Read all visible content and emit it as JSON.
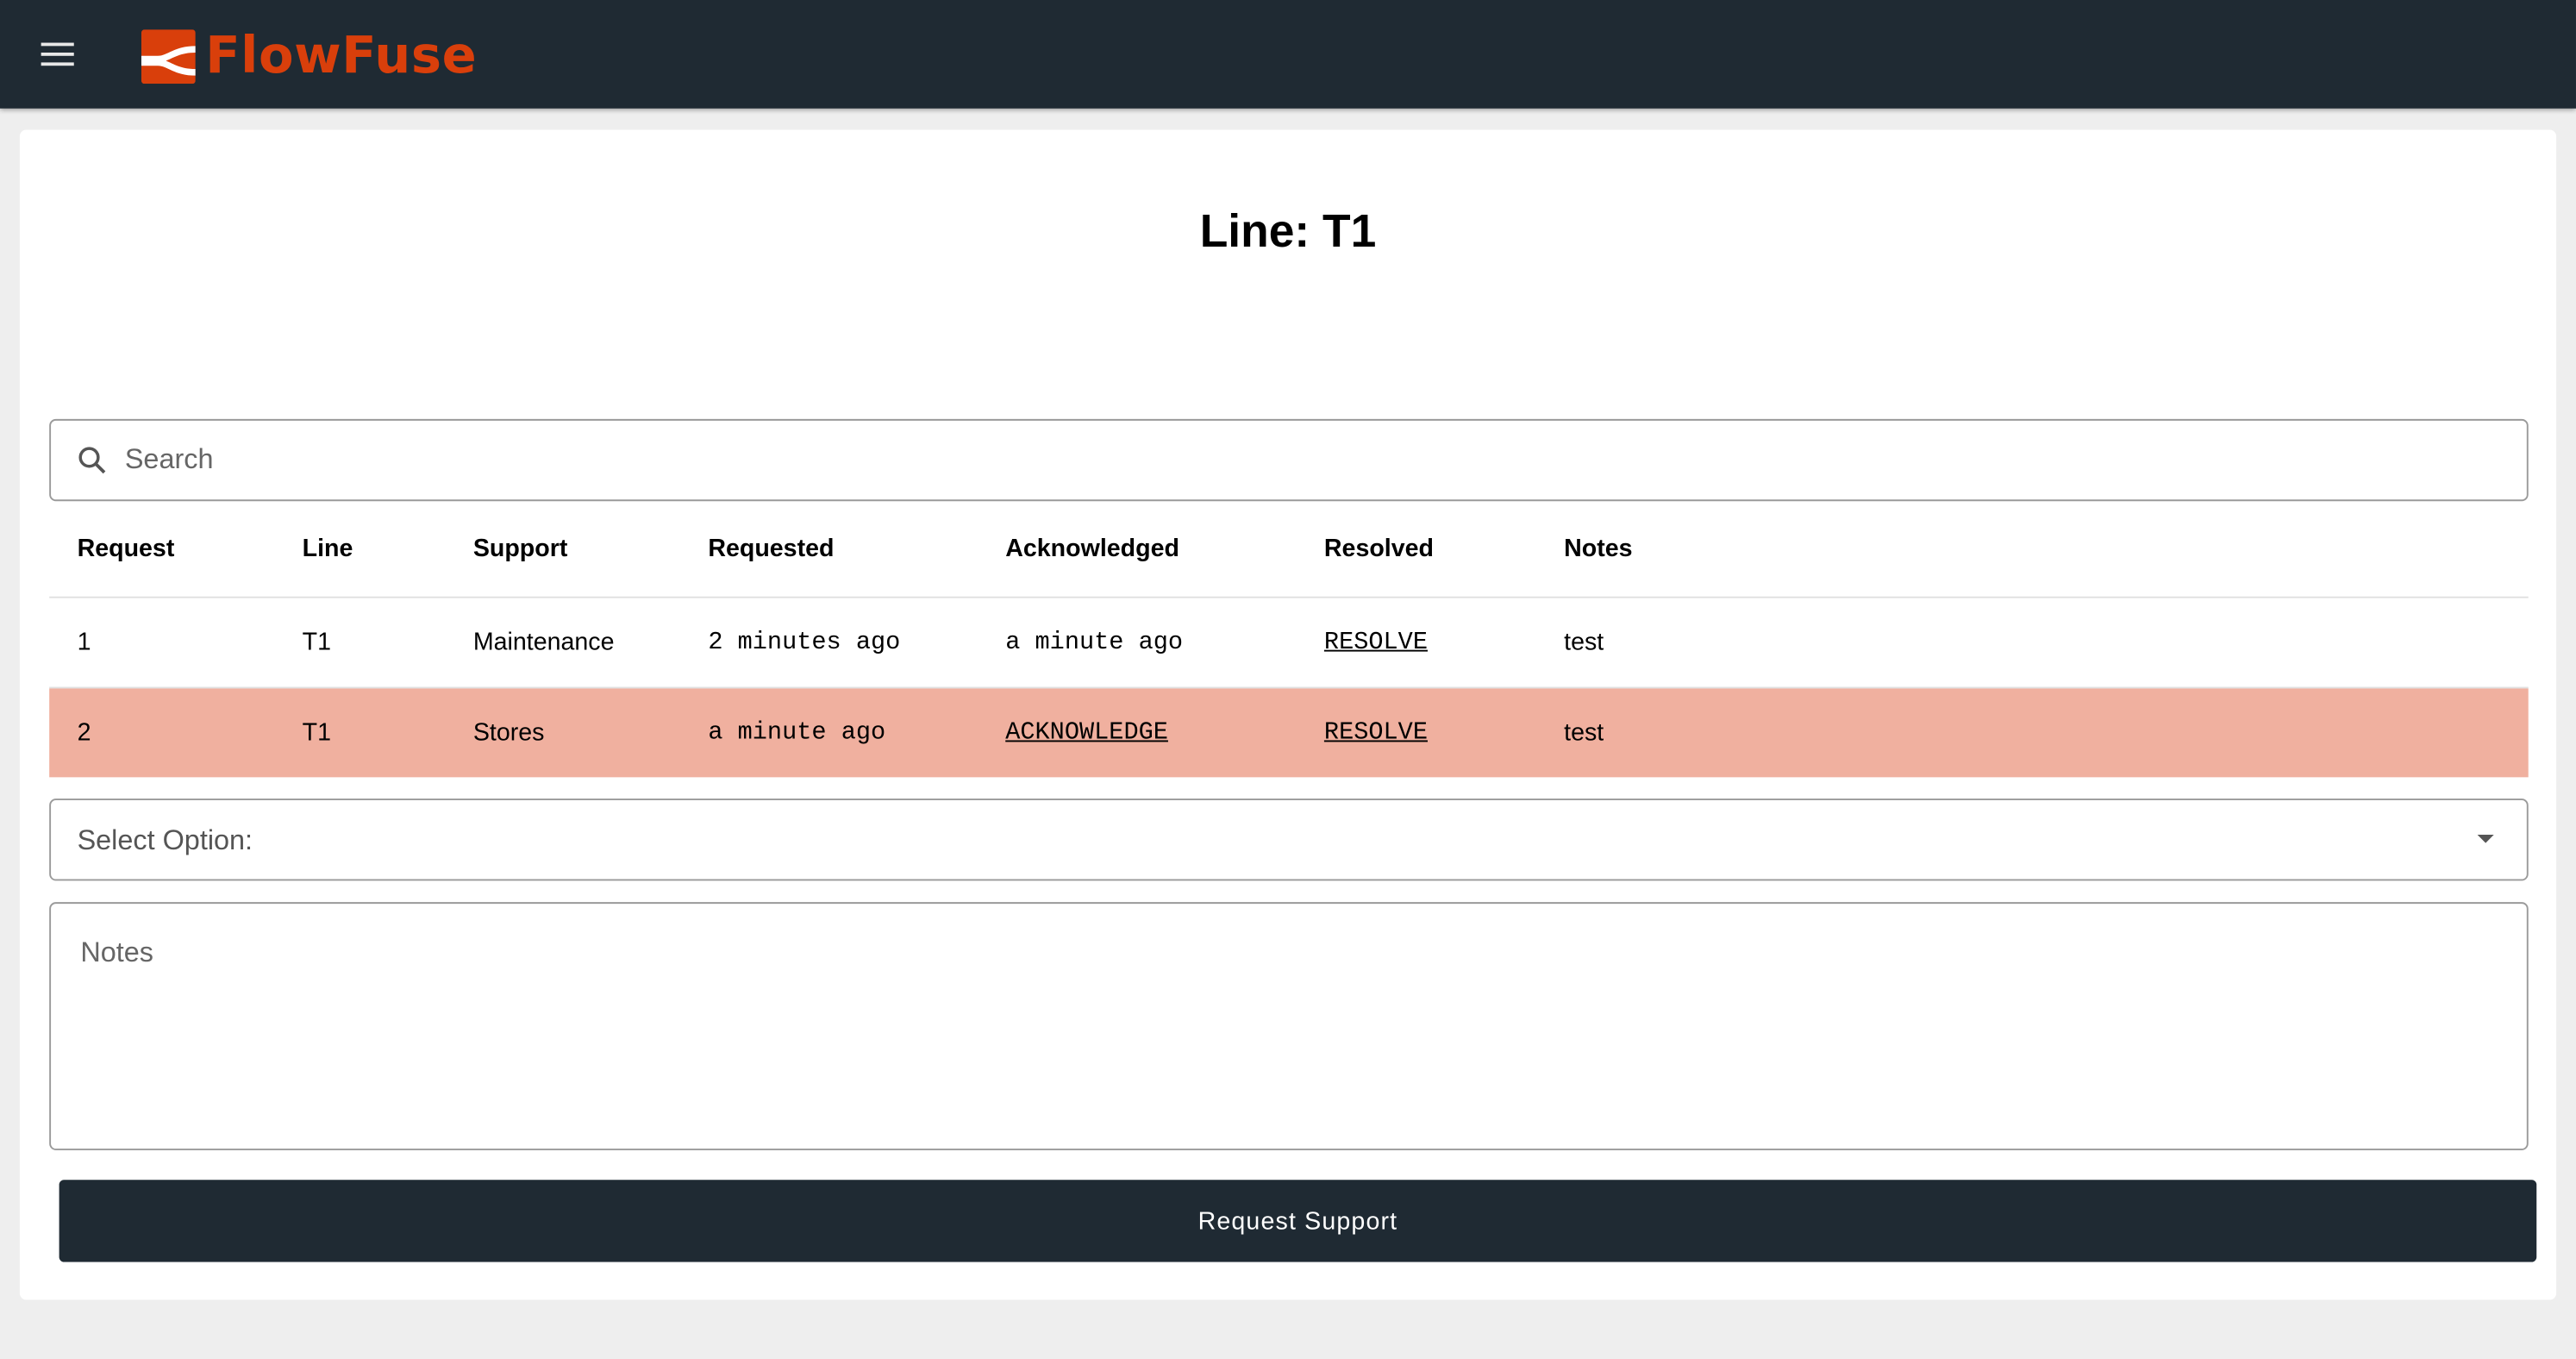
{
  "app": {
    "brand": "FlowFuse",
    "brand_color": "#d93f0b",
    "header_color": "#1f2a33"
  },
  "page": {
    "title": "Line: T1"
  },
  "search": {
    "placeholder": "Search"
  },
  "table": {
    "columns": [
      "Request",
      "Line",
      "Support",
      "Requested",
      "Acknowledged",
      "Resolved",
      "Notes"
    ],
    "rows": [
      {
        "request": "1",
        "line": "T1",
        "support": "Maintenance",
        "requested": "2 minutes ago",
        "acknowledged": "a minute ago",
        "resolved": "RESOLVE",
        "notes": "test",
        "highlight": false
      },
      {
        "request": "2",
        "line": "T1",
        "support": "Stores",
        "requested": "a minute ago",
        "acknowledged": "ACKNOWLEDGE",
        "resolved": "RESOLVE",
        "notes": "test",
        "highlight": true,
        "highlight_color": "#f0b09f"
      }
    ]
  },
  "form": {
    "select_label": "Select Option:",
    "notes_placeholder": "Notes",
    "submit_label": "Request Support"
  }
}
